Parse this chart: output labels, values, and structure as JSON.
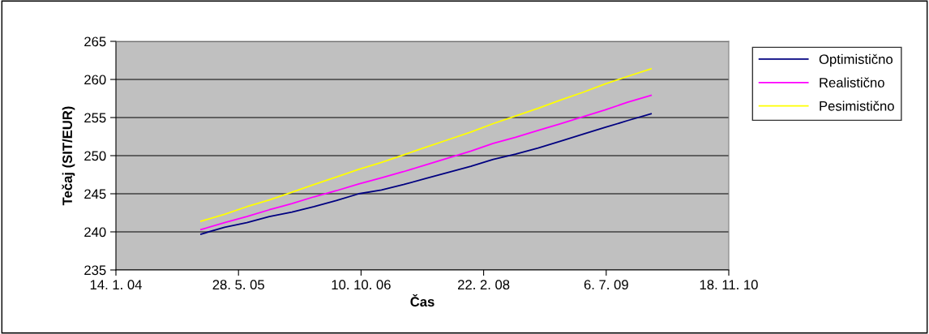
{
  "chart_data": {
    "type": "line",
    "xlabel": "Čas",
    "ylabel": "Tečaj (SIT/EUR)",
    "x": [
      "2004-12-26",
      "2005-04-01",
      "2005-07-01",
      "2005-10-01",
      "2006-01-01",
      "2006-04-01",
      "2006-07-01",
      "2006-10-01",
      "2007-01-01",
      "2007-04-01",
      "2007-07-01",
      "2007-10-01",
      "2008-01-01",
      "2008-04-01",
      "2008-07-01",
      "2008-10-01",
      "2009-01-01",
      "2009-04-01",
      "2009-07-01",
      "2009-10-01",
      "2010-01-05"
    ],
    "series": [
      {
        "name": "Optimistično",
        "color": "#000080",
        "values": [
          239.7,
          240.6,
          241.2,
          242.0,
          242.6,
          243.3,
          244.1,
          245.0,
          245.5,
          246.2,
          247.0,
          247.8,
          248.6,
          249.5,
          250.2,
          251.0,
          251.9,
          252.8,
          253.7,
          254.6,
          255.5
        ]
      },
      {
        "name": "Realistično",
        "color": "#ff00ff",
        "values": [
          240.3,
          241.2,
          242.0,
          242.9,
          243.7,
          244.6,
          245.4,
          246.3,
          247.1,
          247.9,
          248.8,
          249.7,
          250.6,
          251.6,
          252.4,
          253.3,
          254.2,
          255.1,
          256.0,
          257.0,
          257.9
        ]
      },
      {
        "name": "Pesimistično",
        "color": "#ffff00",
        "values": [
          241.4,
          242.3,
          243.3,
          244.2,
          245.2,
          246.2,
          247.2,
          248.2,
          249.1,
          250.1,
          251.1,
          252.1,
          253.1,
          254.2,
          255.2,
          256.2,
          257.3,
          258.3,
          259.4,
          260.4,
          261.4
        ]
      }
    ],
    "xlim": [
      "2004-01-14",
      "2010-11-18"
    ],
    "xticks": [
      {
        "value": "2004-01-14",
        "label": "14. 1. 04"
      },
      {
        "value": "2005-05-28",
        "label": "28. 5. 05"
      },
      {
        "value": "2006-10-10",
        "label": "10. 10. 06"
      },
      {
        "value": "2008-02-22",
        "label": "22. 2. 08"
      },
      {
        "value": "2009-07-06",
        "label": "6. 7. 09"
      },
      {
        "value": "2010-11-18",
        "label": "18. 11. 10"
      }
    ],
    "ylim": [
      235,
      265
    ],
    "yticks": [
      235,
      240,
      245,
      250,
      255,
      260,
      265
    ],
    "grid": "y",
    "legend": "right",
    "marker": "none",
    "line_style": "solid"
  }
}
